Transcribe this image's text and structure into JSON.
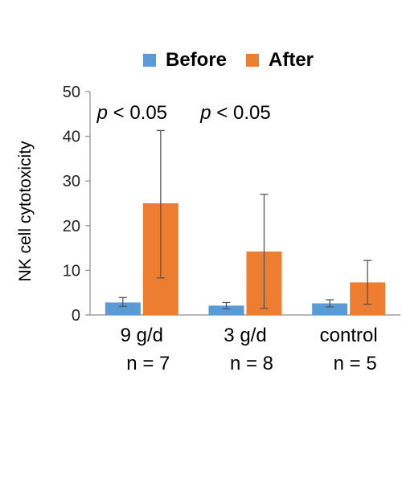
{
  "chart_data": {
    "type": "bar",
    "ylabel": "NK cell cytotoxicity",
    "ylim": [
      0,
      50
    ],
    "yticks": [
      0,
      10,
      20,
      30,
      40,
      50
    ],
    "grid": false,
    "legend_position": "top",
    "categories": [
      {
        "label": "9 g/d",
        "n_label": "n = 7"
      },
      {
        "label": "3 g/d",
        "n_label": "n = 8"
      },
      {
        "label": "control",
        "n_label": "n = 5"
      }
    ],
    "series": [
      {
        "name": "Before",
        "color": "#5b9bd5",
        "values": [
          2.8,
          2.1,
          2.6
        ],
        "err_low": [
          1.9,
          1.4,
          1.8
        ],
        "err_high": [
          3.9,
          2.8,
          3.4
        ]
      },
      {
        "name": "After",
        "color": "#ed7d31",
        "values": [
          25.0,
          14.2,
          7.3
        ],
        "err_low": [
          8.3,
          1.5,
          2.4
        ],
        "err_high": [
          41.3,
          27.0,
          12.2
        ]
      }
    ],
    "annotations": [
      {
        "italic": "p",
        "text": " < 0.05",
        "category_index": 0
      },
      {
        "italic": "p",
        "text": " < 0.05",
        "category_index": 1
      }
    ]
  }
}
